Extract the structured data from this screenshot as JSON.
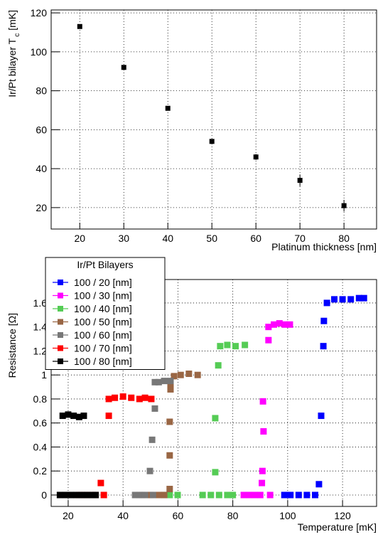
{
  "chart_data": [
    {
      "type": "scatter",
      "xlabel": "Platinum thickness [nm]",
      "ylabel": {
        "text": "Ir/Pt bilayer T",
        "subscript": "c",
        "unit": "[mK]"
      },
      "x": [
        20,
        30,
        40,
        50,
        60,
        70,
        80
      ],
      "values": [
        113,
        92,
        71,
        54,
        46,
        34,
        21
      ],
      "errors": [
        1,
        1,
        1,
        1,
        1.5,
        3,
        3
      ],
      "color": "#000000",
      "xlim": [
        13.5,
        87.4
      ],
      "ylim": [
        9,
        121.5
      ],
      "xticks": [
        20,
        30,
        40,
        50,
        60,
        70,
        80
      ],
      "yticks": [
        20,
        40,
        60,
        80,
        100,
        120
      ],
      "grid": true
    },
    {
      "type": "scatter",
      "xlabel": "Temperature [mK]",
      "ylabel": "Resistance [Ω]",
      "legend_title": "Ir/Pt Bilayers",
      "legend_loc": "upper left",
      "series": [
        {
          "name": "100 / 20 [nm]",
          "color": "#0000ff",
          "x": [
            98.8,
            101,
            104,
            107,
            110,
            111.4,
            112.2,
            113,
            113.2,
            114.3,
            117,
            120,
            123,
            126,
            127.8
          ],
          "values": [
            0,
            0,
            0,
            0,
            0,
            0.09,
            0.66,
            1.24,
            1.45,
            1.6,
            1.63,
            1.63,
            1.63,
            1.64,
            1.64
          ]
        },
        {
          "name": "100 / 30 [nm]",
          "color": "#ff00ff",
          "x": [
            84,
            86,
            88,
            90,
            90.6,
            90.8,
            91,
            91.2,
            93.6,
            93,
            93,
            95,
            97,
            99,
            100.8
          ],
          "values": [
            0,
            0,
            0,
            0,
            0.1,
            0.2,
            0.78,
            0.53,
            0,
            1.29,
            1.4,
            1.42,
            1.43,
            1.42,
            1.42
          ]
        },
        {
          "name": "100 / 40 [nm]",
          "color": "#55cc55",
          "x": [
            55,
            57,
            59.9,
            69,
            72,
            75,
            78,
            80,
            73.6,
            73.6,
            74.7,
            75.4,
            78,
            81,
            84.4
          ],
          "values": [
            0,
            0,
            0,
            0,
            0,
            0,
            0,
            0,
            0.19,
            0.64,
            1.08,
            1.24,
            1.25,
            1.24,
            1.25
          ]
        },
        {
          "name": "100 / 50 [nm]",
          "color": "#996644",
          "x": [
            47,
            50,
            53,
            55,
            57,
            57,
            57,
            57.3,
            57.3,
            58.6,
            61,
            64,
            67.2
          ],
          "values": [
            0,
            0,
            0,
            0,
            0.05,
            0.33,
            0.61,
            0.88,
            0.93,
            0.99,
            1,
            1.01,
            1
          ]
        },
        {
          "name": "100 / 60 [nm]",
          "color": "#777777",
          "x": [
            44.4,
            46,
            48,
            49.8,
            50.6,
            50.9,
            51.6,
            51.6,
            53,
            55,
            57.3
          ],
          "values": [
            0,
            0,
            0,
            0.2,
            0.46,
            0,
            0.72,
            0.94,
            0.94,
            0.95,
            0.95
          ]
        },
        {
          "name": "100 / 70 [nm]",
          "color": "#ff0000",
          "x": [
            24,
            26,
            28,
            30,
            31.9,
            33,
            34.8,
            34.8,
            37,
            40,
            43,
            46,
            48,
            50.3
          ],
          "values": [
            0,
            0,
            0,
            0,
            0.1,
            0,
            0.66,
            0.8,
            0.81,
            0.82,
            0.81,
            0.8,
            0.81,
            0.8
          ]
        },
        {
          "name": "100 / 80 [nm]",
          "color": "#000000",
          "x": [
            17,
            19,
            21,
            23,
            25,
            27,
            29,
            30,
            18,
            20,
            22,
            24,
            25.7
          ],
          "values": [
            0,
            0,
            0,
            0,
            0,
            0,
            0,
            0,
            0.66,
            0.67,
            0.66,
            0.65,
            0.66
          ]
        }
      ],
      "xlim": [
        13.8,
        132.4
      ],
      "ylim": [
        -0.095,
        1.795
      ],
      "xticks": [
        20,
        40,
        60,
        80,
        100,
        120
      ],
      "yticks": [
        0,
        0.2,
        0.4,
        0.6,
        0.8,
        1,
        1.2,
        1.4,
        1.6
      ],
      "grid": true
    }
  ]
}
